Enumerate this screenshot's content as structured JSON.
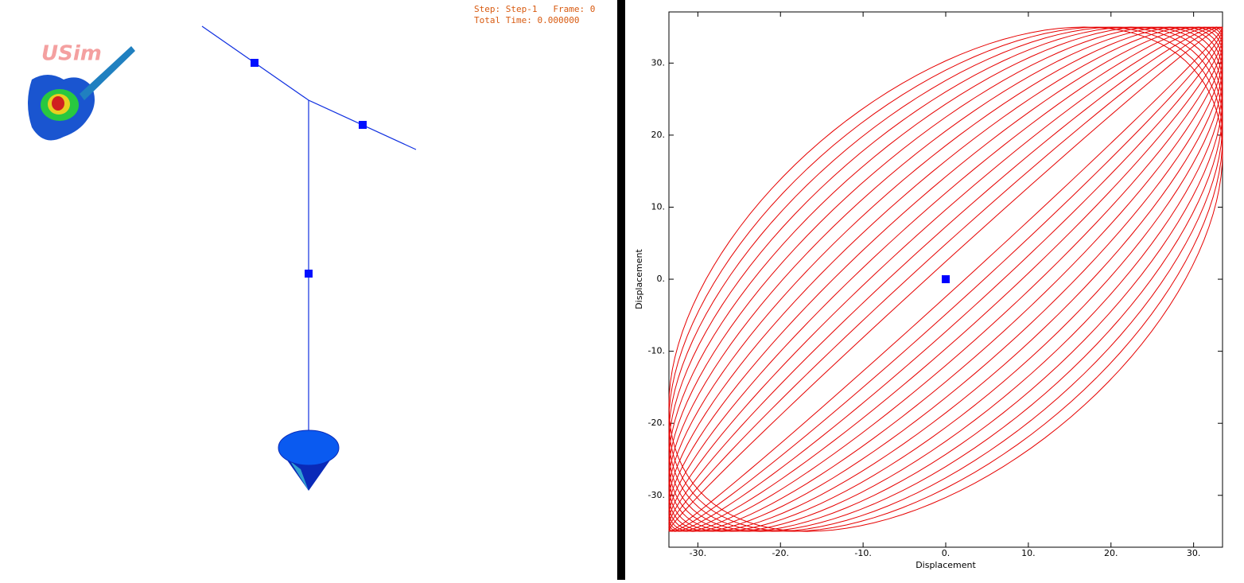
{
  "viewport": {
    "logo": "USim",
    "status": [
      "Step: Step-1   Frame: 0",
      "Total Time: 0.000000"
    ]
  },
  "chart_data": {
    "type": "line",
    "x_label": "Displacement",
    "y_label": "Displacement",
    "xlim": [
      -33.5,
      33.5
    ],
    "ylim": [
      -37.2,
      37.1
    ],
    "xticks": [
      {
        "value": -30,
        "label": "-30."
      },
      {
        "value": -20,
        "label": "-20."
      },
      {
        "value": -10,
        "label": "-10."
      },
      {
        "value": 0,
        "label": "0."
      },
      {
        "value": 10,
        "label": "10."
      },
      {
        "value": 20,
        "label": "20."
      },
      {
        "value": 30,
        "label": "30."
      }
    ],
    "yticks": [
      {
        "value": -30,
        "label": "-30."
      },
      {
        "value": -20,
        "label": "-20."
      },
      {
        "value": -10,
        "label": "-10."
      },
      {
        "value": 0,
        "label": "0."
      },
      {
        "value": 10,
        "label": "10."
      },
      {
        "value": 20,
        "label": "20."
      },
      {
        "value": 30,
        "label": "30."
      }
    ],
    "loops": {
      "color": "#e60000",
      "x_amplitude": 33.5,
      "y_amplitude": 35,
      "phase": [
        4,
        8,
        12,
        16,
        20,
        24,
        28,
        32,
        36,
        40,
        44,
        48,
        52,
        56,
        60
      ]
    },
    "marker": {
      "x": 0,
      "y": 0,
      "color": "#0000ff"
    }
  }
}
